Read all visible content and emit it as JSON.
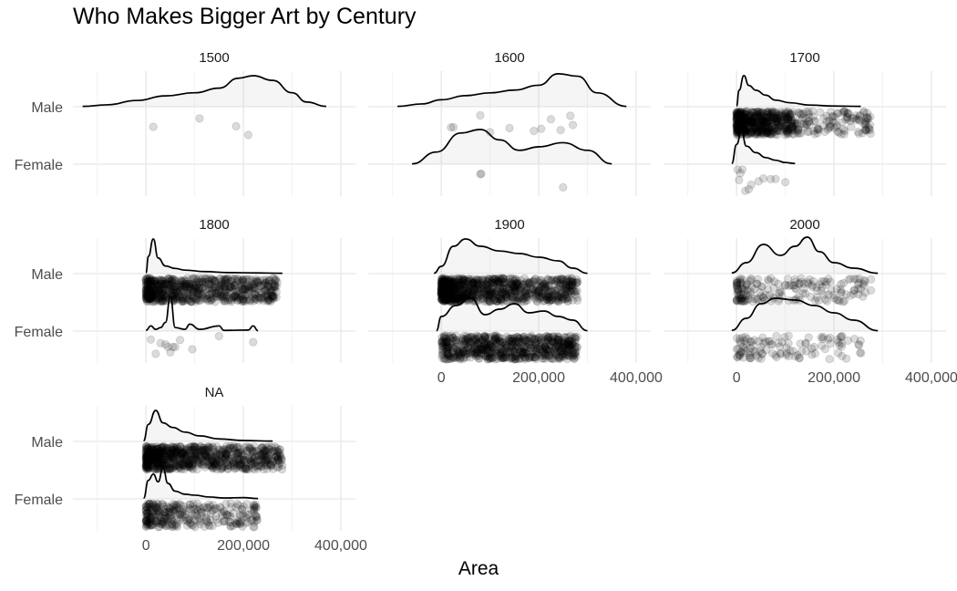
{
  "chart_data": {
    "type": "ridgeline-jitter",
    "title": "Who Makes Bigger Art by Century",
    "xlabel": "Area",
    "ylabel": "",
    "xlim": [
      -150000,
      430000
    ],
    "x_ticks": [
      0,
      200000,
      400000
    ],
    "x_tick_labels": [
      "0",
      "200,000",
      "400,000"
    ],
    "categories": [
      "Male",
      "Female"
    ],
    "facets": [
      {
        "label": "1500",
        "series": [
          {
            "name": "Male",
            "density": {
              "x": [
                -130000,
                -80000,
                -20000,
                40000,
                100000,
                150000,
                190000,
                220000,
                260000,
                300000,
                330000,
                370000
              ],
              "y": [
                0.01,
                0.06,
                0.2,
                0.35,
                0.45,
                0.6,
                0.92,
                1.0,
                0.85,
                0.45,
                0.15,
                0.01
              ]
            },
            "points": [
              15000,
              110000,
              185000,
              210000
            ]
          },
          {
            "name": "Female",
            "density": null,
            "points": []
          }
        ]
      },
      {
        "label": "1600",
        "series": [
          {
            "name": "Male",
            "density": {
              "x": [
                -90000,
                -40000,
                0,
                50000,
                100000,
                150000,
                200000,
                240000,
                280000,
                320000,
                380000
              ],
              "y": [
                0.01,
                0.08,
                0.2,
                0.32,
                0.4,
                0.48,
                0.62,
                0.95,
                0.88,
                0.4,
                0.01
              ]
            },
            "points": [
              20000,
              25000,
              80000,
              100000,
              140000,
              190000,
              205000,
              225000,
              245000,
              265000,
              270000
            ]
          },
          {
            "name": "Female",
            "density": {
              "x": [
                -60000,
                -10000,
                40000,
                80000,
                120000,
                160000,
                200000,
                250000,
                300000,
                350000
              ],
              "y": [
                0.01,
                0.35,
                0.9,
                1.0,
                0.7,
                0.4,
                0.5,
                0.62,
                0.4,
                0.01
              ]
            },
            "points": [
              80000,
              82000,
              250000
            ]
          }
        ]
      },
      {
        "label": "1700",
        "series": [
          {
            "name": "Male",
            "density": {
              "x": [
                0,
                5000,
                15000,
                25000,
                40000,
                60000,
                80000,
                110000,
                150000,
                200000,
                255000
              ],
              "y": [
                0.02,
                0.5,
                0.95,
                0.65,
                0.5,
                0.35,
                0.2,
                0.12,
                0.05,
                0.02,
                0.01
              ]
            },
            "dense_range": [
              0,
              120000
            ],
            "sparse_range": [
              120000,
              280000
            ],
            "dense_count": 500,
            "sparse_count": 120
          },
          {
            "name": "Female",
            "density": {
              "x": [
                -10000,
                0,
                10000,
                20000,
                40000,
                60000,
                80000,
                100000,
                120000
              ],
              "y": [
                0.02,
                0.6,
                1.0,
                0.55,
                0.35,
                0.2,
                0.12,
                0.05,
                0.02
              ]
            },
            "points": [
              2000,
              5000,
              8000,
              12000,
              18000,
              25000,
              30000,
              45000,
              55000,
              70000,
              80000,
              100000
            ]
          }
        ]
      },
      {
        "label": "1800",
        "series": [
          {
            "name": "Male",
            "density": {
              "x": [
                0,
                5000,
                15000,
                25000,
                40000,
                60000,
                80000,
                120000,
                170000,
                230000,
                280000
              ],
              "y": [
                0.02,
                0.5,
                1.0,
                0.45,
                0.22,
                0.15,
                0.1,
                0.06,
                0.03,
                0.02,
                0.01
              ]
            },
            "dense_range": [
              0,
              270000
            ],
            "dense_count": 700
          },
          {
            "name": "Female",
            "density": {
              "x": [
                0,
                10000,
                20000,
                30000,
                40000,
                50000,
                60000,
                80000,
                90000,
                110000,
                150000,
                160000,
                210000,
                220000,
                230000
              ],
              "y": [
                0.02,
                0.15,
                0.05,
                0.1,
                0.25,
                1.0,
                0.1,
                0.05,
                0.2,
                0.05,
                0.15,
                0.02,
                0.03,
                0.15,
                0.01
              ]
            },
            "points": [
              10000,
              20000,
              30000,
              40000,
              45000,
              50000,
              55000,
              60000,
              70000,
              95000,
              150000,
              220000
            ]
          }
        ]
      },
      {
        "label": "1900",
        "series": [
          {
            "name": "Male",
            "density": {
              "x": [
                -15000,
                0,
                25000,
                50000,
                80000,
                120000,
                160000,
                200000,
                240000,
                270000,
                300000
              ],
              "y": [
                0.01,
                0.2,
                0.75,
                0.95,
                0.75,
                0.62,
                0.55,
                0.45,
                0.35,
                0.15,
                0.01
              ]
            },
            "dense_range": [
              0,
              280000
            ],
            "dense_count": 900
          },
          {
            "name": "Female",
            "density": {
              "x": [
                -10000,
                0,
                30000,
                60000,
                90000,
                120000,
                150000,
                180000,
                210000,
                240000,
                270000,
                300000
              ],
              "y": [
                0.01,
                0.4,
                0.7,
                0.9,
                0.45,
                0.6,
                0.75,
                0.5,
                0.55,
                0.4,
                0.3,
                0.01
              ]
            },
            "dense_range": [
              0,
              280000
            ],
            "dense_count": 700
          }
        ]
      },
      {
        "label": "2000",
        "series": [
          {
            "name": "Male",
            "density": {
              "x": [
                -10000,
                20000,
                55000,
                90000,
                120000,
                145000,
                170000,
                200000,
                240000,
                290000
              ],
              "y": [
                0.02,
                0.3,
                0.8,
                0.5,
                0.75,
                1.0,
                0.6,
                0.3,
                0.15,
                0.01
              ]
            },
            "dense_range": [
              0,
              280000
            ],
            "dense_count": 180
          },
          {
            "name": "Female",
            "density": {
              "x": [
                -10000,
                20000,
                50000,
                80000,
                120000,
                160000,
                200000,
                240000,
                290000
              ],
              "y": [
                0.02,
                0.35,
                0.75,
                0.9,
                0.85,
                0.7,
                0.5,
                0.3,
                0.01
              ]
            },
            "dense_range": [
              0,
              260000
            ],
            "dense_count": 110
          }
        ]
      },
      {
        "label": "NA",
        "series": [
          {
            "name": "Male",
            "density": {
              "x": [
                -5000,
                5000,
                20000,
                35000,
                55000,
                80000,
                110000,
                150000,
                200000,
                260000
              ],
              "y": [
                0.02,
                0.55,
                1.0,
                0.6,
                0.45,
                0.3,
                0.18,
                0.08,
                0.03,
                0.01
              ]
            },
            "dense_range": [
              0,
              280000
            ],
            "dense_count": 800
          },
          {
            "name": "Female",
            "density": {
              "x": [
                -5000,
                5000,
                15000,
                25000,
                35000,
                45000,
                60000,
                80000,
                100000,
                130000,
                160000,
                200000,
                230000
              ],
              "y": [
                0.02,
                0.6,
                0.8,
                0.55,
                1.0,
                0.5,
                0.25,
                0.15,
                0.12,
                0.06,
                0.03,
                0.04,
                0.01
              ]
            },
            "dense_range": [
              0,
              230000
            ],
            "dense_count": 300
          }
        ]
      }
    ]
  }
}
